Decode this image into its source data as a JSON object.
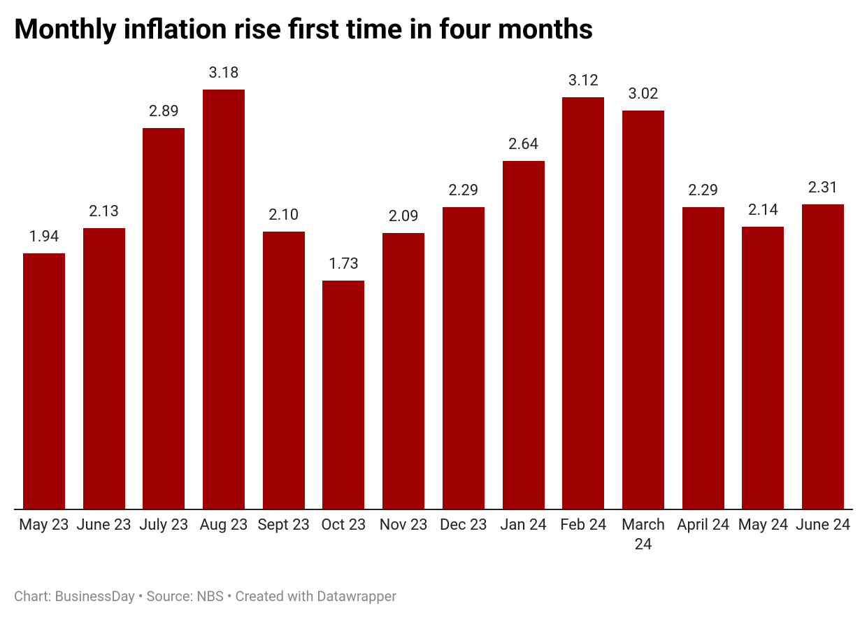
{
  "chart_data": {
    "type": "bar",
    "title": "Monthly inflation rise first time in four months",
    "categories": [
      "May 23",
      "June 23",
      "July 23",
      "Aug 23",
      "Sept 23",
      "Oct 23",
      "Nov 23",
      "Dec 23",
      "Jan 24",
      "Feb 24",
      "March 24",
      "April 24",
      "May 24",
      "June 24"
    ],
    "values": [
      1.94,
      2.13,
      2.89,
      3.18,
      2.1,
      1.73,
      2.09,
      2.29,
      2.64,
      3.12,
      3.02,
      2.29,
      2.14,
      2.31
    ],
    "value_labels": [
      "1.94",
      "2.13",
      "2.89",
      "3.18",
      "2.10",
      "1.73",
      "2.09",
      "2.29",
      "2.64",
      "3.12",
      "3.02",
      "2.29",
      "2.14",
      "2.31"
    ],
    "color": "#a00000",
    "footer": "Chart: BusinessDay • Source: NBS • Created with Datawrapper"
  }
}
